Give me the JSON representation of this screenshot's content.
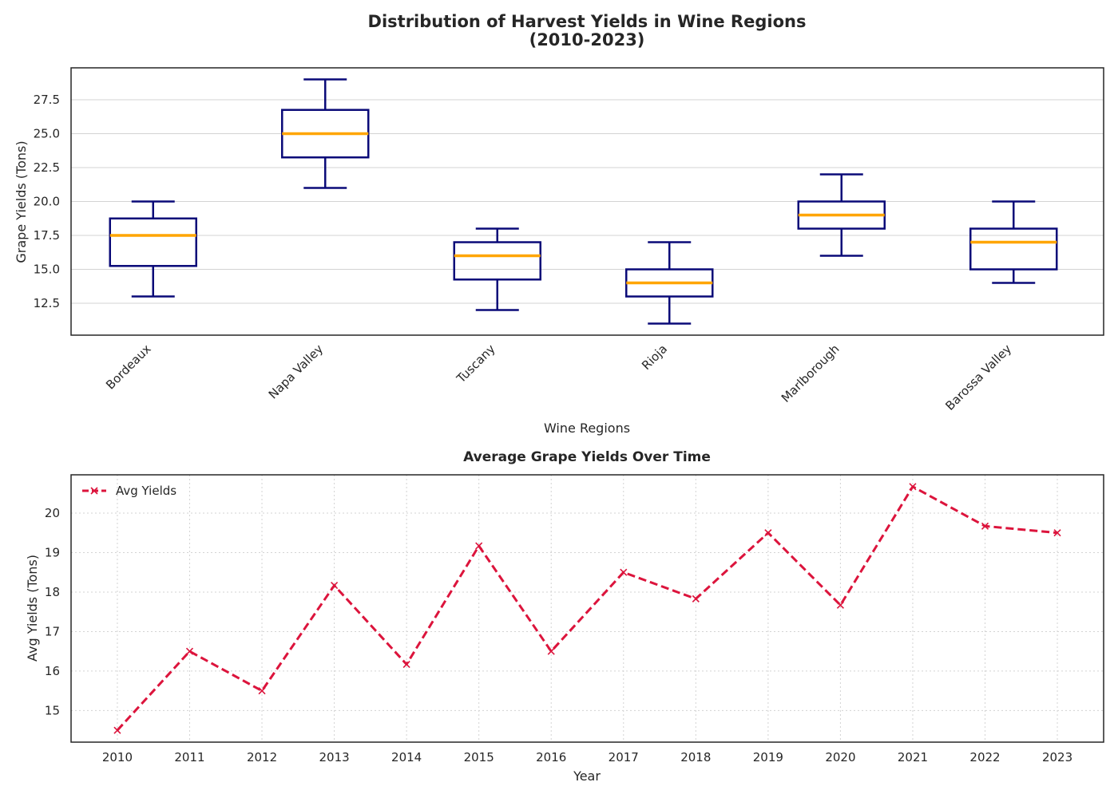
{
  "chart_data": [
    {
      "type": "box",
      "title_lines": [
        "Distribution of Harvest Yields in Wine Regions",
        "(2010-2023)"
      ],
      "xlabel": "Wine Regions",
      "ylabel": "Grape Yields (Tons)",
      "ylim": [
        10.15,
        29.85
      ],
      "yticks": [
        12.5,
        15.0,
        17.5,
        20.0,
        22.5,
        25.0,
        27.5
      ],
      "ytick_labels": [
        "12.5",
        "15.0",
        "17.5",
        "20.0",
        "22.5",
        "25.0",
        "27.5"
      ],
      "grid": "y",
      "colors": {
        "box": "#0a0a78",
        "median": "#ffa500",
        "grid": "#d3d3d3"
      },
      "categories": [
        "Bordeaux",
        "Napa Valley",
        "Tuscany",
        "Rioja",
        "Marlborough",
        "Barossa Valley"
      ],
      "boxes": [
        {
          "whisker_low": 13,
          "q1": 15.25,
          "median": 17.5,
          "q3": 18.75,
          "whisker_high": 20
        },
        {
          "whisker_low": 21,
          "q1": 23.25,
          "median": 25,
          "q3": 26.75,
          "whisker_high": 29
        },
        {
          "whisker_low": 12,
          "q1": 14.25,
          "median": 16,
          "q3": 17,
          "whisker_high": 18
        },
        {
          "whisker_low": 11,
          "q1": 13,
          "median": 14,
          "q3": 15,
          "whisker_high": 17
        },
        {
          "whisker_low": 16,
          "q1": 18,
          "median": 19,
          "q3": 20,
          "whisker_high": 22
        },
        {
          "whisker_low": 14,
          "q1": 15,
          "median": 17,
          "q3": 18,
          "whisker_high": 20
        }
      ]
    },
    {
      "type": "line",
      "title": "Average Grape Yields Over Time",
      "xlabel": "Year",
      "ylabel": "Avg Yields (Tons)",
      "ylim": [
        14.2,
        20.97
      ],
      "yticks": [
        15,
        16,
        17,
        18,
        19,
        20
      ],
      "grid": "both, dotted",
      "legend_position": "top-left",
      "x": [
        "2010",
        "2011",
        "2012",
        "2013",
        "2014",
        "2015",
        "2016",
        "2017",
        "2018",
        "2019",
        "2020",
        "2021",
        "2022",
        "2023"
      ],
      "series": [
        {
          "name": "Avg Yields",
          "color": "#dc143c",
          "marker": "x",
          "line_style": "dashed",
          "values": [
            14.5,
            16.5,
            15.5,
            18.17,
            16.17,
            19.17,
            16.5,
            18.5,
            17.83,
            19.5,
            17.67,
            20.67,
            19.67,
            19.5
          ]
        }
      ]
    }
  ]
}
